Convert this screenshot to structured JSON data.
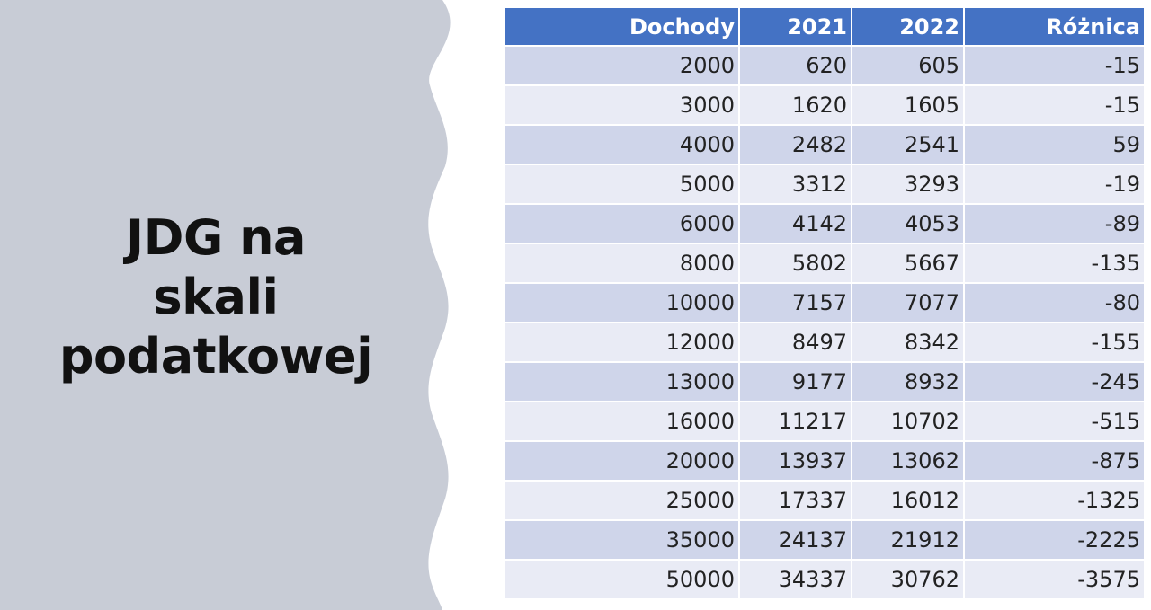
{
  "slide": {
    "title_lines": [
      "JDG na",
      "skali",
      "podatkowej"
    ]
  },
  "table": {
    "headers": [
      "Dochody",
      "2021",
      "2022",
      "Różnica"
    ],
    "rows": [
      [
        "2000",
        "620",
        "605",
        "-15"
      ],
      [
        "3000",
        "1620",
        "1605",
        "-15"
      ],
      [
        "4000",
        "2482",
        "2541",
        "59"
      ],
      [
        "5000",
        "3312",
        "3293",
        "-19"
      ],
      [
        "6000",
        "4142",
        "4053",
        "-89"
      ],
      [
        "8000",
        "5802",
        "5667",
        "-135"
      ],
      [
        "10000",
        "7157",
        "7077",
        "-80"
      ],
      [
        "12000",
        "8497",
        "8342",
        "-155"
      ],
      [
        "13000",
        "9177",
        "8932",
        "-245"
      ],
      [
        "16000",
        "11217",
        "10702",
        "-515"
      ],
      [
        "20000",
        "13937",
        "13062",
        "-875"
      ],
      [
        "25000",
        "17337",
        "16012",
        "-1325"
      ],
      [
        "35000",
        "24137",
        "21912",
        "-2225"
      ],
      [
        "50000",
        "34337",
        "30762",
        "-3575"
      ]
    ]
  },
  "colors": {
    "panel": "#c8ccd6",
    "header": "#4472c4",
    "row_odd": "#cfd5ea",
    "row_even": "#e9ebf5"
  }
}
